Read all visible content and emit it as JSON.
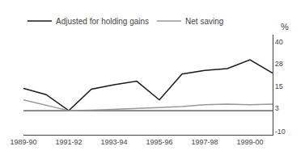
{
  "chart_data": {
    "type": "line",
    "categories": [
      "1989-90",
      null,
      "1991-92",
      null,
      "1993-94",
      null,
      "1995-96",
      null,
      "1997-98",
      null,
      "1999-00",
      null
    ],
    "series": [
      {
        "name": "Adjusted for holding gains",
        "color": "#1a1a1a",
        "values": [
          14.0,
          10.5,
          1.5,
          13.5,
          16.0,
          18.0,
          7.5,
          22.0,
          24.0,
          25.0,
          30.0,
          22.5
        ]
      },
      {
        "name": "Net saving",
        "color": "#999999",
        "values": [
          7.5,
          4.5,
          1.5,
          1.8,
          2.2,
          2.8,
          3.2,
          3.8,
          4.8,
          5.2,
          4.8,
          5.2
        ]
      }
    ],
    "reference_line": {
      "value": 1.5,
      "color": "#1a1a1a"
    },
    "y_label": "%",
    "ylim": [
      -12,
      44
    ],
    "yticks": [
      -10,
      3,
      15,
      28,
      40
    ],
    "grid": false,
    "legend": "top"
  }
}
